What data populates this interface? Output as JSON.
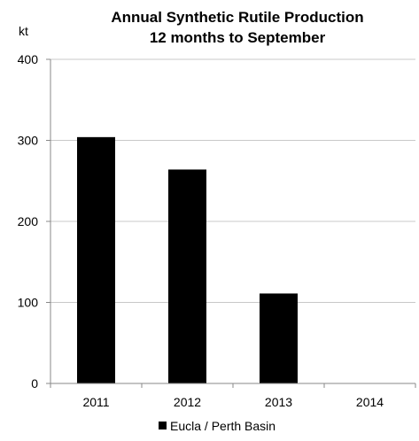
{
  "chart_data": {
    "type": "bar",
    "title": "Annual Synthetic Rutile Production",
    "subtitle": "12 months to September",
    "xlabel": "",
    "ylabel": "kt",
    "categories": [
      "2011",
      "2012",
      "2013",
      "2014"
    ],
    "series": [
      {
        "name": "Eucla / Perth Basin",
        "values": [
          304,
          264,
          111,
          0
        ],
        "color": "#000000"
      }
    ],
    "ylim": [
      0,
      400
    ],
    "yticks": [
      0,
      100,
      200,
      300,
      400
    ],
    "grid": true,
    "legend_position": "bottom"
  }
}
